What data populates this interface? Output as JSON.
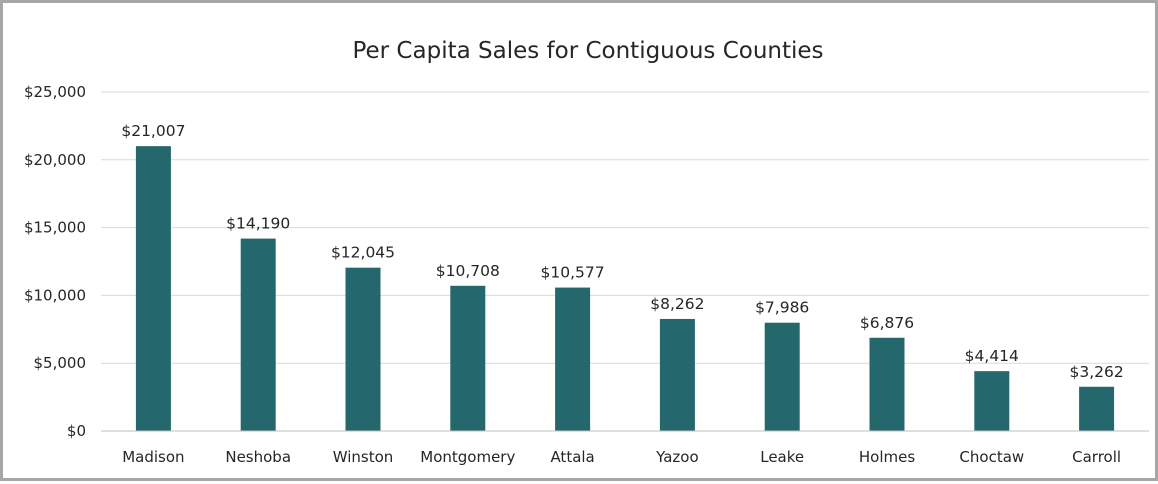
{
  "chart_data": {
    "type": "bar",
    "title": "Per Capita Sales for Contiguous Counties",
    "xlabel": "",
    "ylabel": "",
    "categories": [
      "Madison",
      "Neshoba",
      "Winston",
      "Montgomery",
      "Attala",
      "Yazoo",
      "Leake",
      "Holmes",
      "Choctaw",
      "Carroll"
    ],
    "values": [
      21007,
      14190,
      12045,
      10708,
      10577,
      8262,
      7986,
      6876,
      4414,
      3262
    ],
    "data_labels": [
      "$21,007",
      "$14,190",
      "$12,045",
      "$10,708",
      "$10,577",
      "$8,262",
      "$7,986",
      "$6,876",
      "$4,414",
      "$3,262"
    ],
    "ylim": [
      0,
      25000
    ],
    "y_ticks": [
      0,
      5000,
      10000,
      15000,
      20000,
      25000
    ],
    "y_tick_labels": [
      "$0",
      "$5,000",
      "$10,000",
      "$15,000",
      "$20,000",
      "$25,000"
    ],
    "grid": true,
    "legend": "none",
    "bar_color": "#24676d"
  }
}
